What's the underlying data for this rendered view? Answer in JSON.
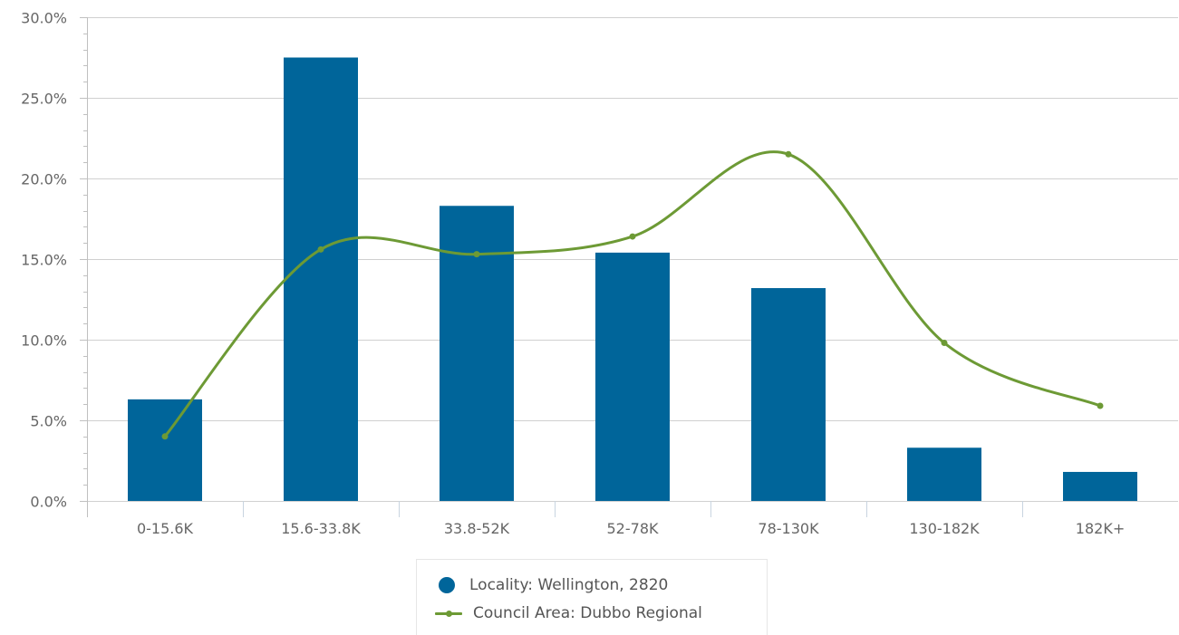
{
  "chart_data": {
    "type": "bar",
    "categories": [
      "0-15.6K",
      "15.6-33.8K",
      "33.8-52K",
      "52-78K",
      "78-130K",
      "130-182K",
      "182K+"
    ],
    "series": [
      {
        "name": "Locality: Wellington, 2820",
        "kind": "bar",
        "color": "#00659a",
        "values": [
          6.3,
          27.5,
          18.3,
          15.4,
          13.2,
          3.3,
          1.8
        ]
      },
      {
        "name": "Council Area: Dubbo Regional",
        "kind": "line-smooth",
        "color": "#6d9a35",
        "values": [
          4.0,
          15.6,
          15.3,
          16.4,
          21.5,
          9.8,
          5.9
        ]
      }
    ],
    "yaxis": {
      "ticks": [
        "0.0%",
        "5.0%",
        "10.0%",
        "15.0%",
        "20.0%",
        "25.0%",
        "30.0%"
      ],
      "min": 0,
      "max": 30
    },
    "grid": true,
    "legend_position": "bottom-center"
  }
}
